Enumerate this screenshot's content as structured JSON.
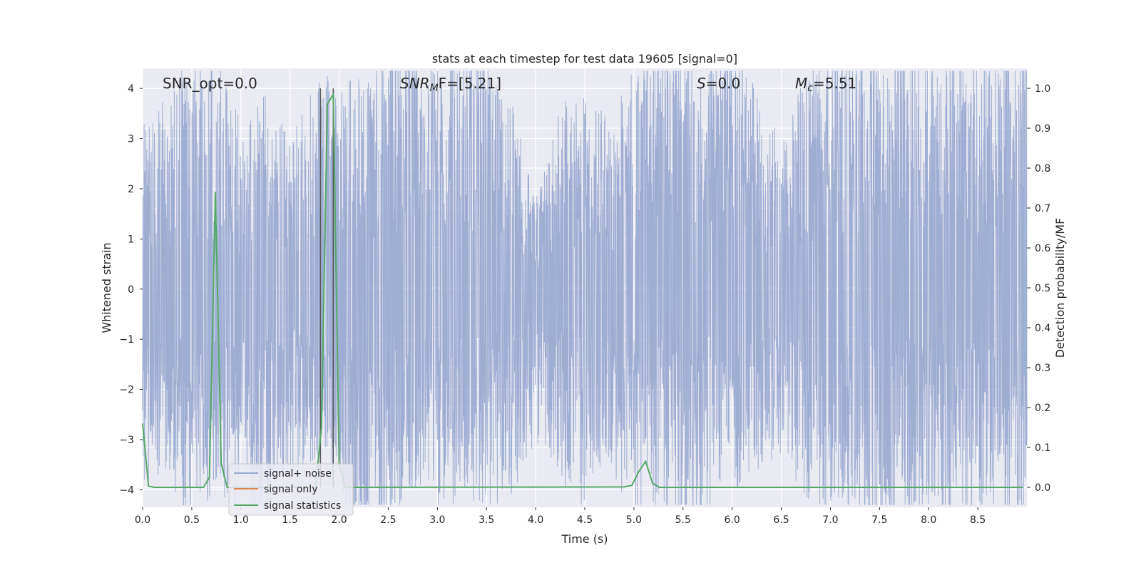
{
  "chart_data": {
    "type": "line",
    "title": "stats at each timestep for test data 19605 [signal=0]",
    "xlabel": "Time (s)",
    "ylabel": "Whitened strain",
    "ylabel_right": "Detection probability/MF",
    "xlim": [
      0.0,
      9.0
    ],
    "ylim": [
      -4.35,
      4.4
    ],
    "ylim_right": [
      -0.05,
      1.05
    ],
    "x_ticks": [
      0.0,
      0.5,
      1.0,
      1.5,
      2.0,
      2.5,
      3.0,
      3.5,
      4.0,
      4.5,
      5.0,
      5.5,
      6.0,
      6.5,
      7.0,
      7.5,
      8.0,
      8.5
    ],
    "y_ticks": [
      -4,
      -3,
      -2,
      -1,
      0,
      1,
      2,
      3,
      4
    ],
    "y_right_ticks": [
      0.0,
      0.1,
      0.2,
      0.3,
      0.4,
      0.5,
      0.6,
      0.7,
      0.8,
      0.9,
      1.0
    ],
    "grid": true,
    "legend_position": "lower-left",
    "annotations": {
      "snr_opt": "SNR_opt=0.0",
      "snr_mf_base": "SNR",
      "snr_mf_sub": "M",
      "snr_mf_rest": "F=[5.21]",
      "s_symbol": "S",
      "s_rest": "=0.0",
      "mc_symbol": "M",
      "mc_sub": "c",
      "mc_rest": "=5.51"
    },
    "vertical_markers": [
      1.81,
      1.94
    ],
    "series": [
      {
        "name": "signal+ noise",
        "color": "#9aabd1",
        "axis": "left",
        "envelope": {
          "x": [
            0.0,
            0.25,
            0.5,
            0.75,
            1.0,
            1.25,
            1.5,
            1.75,
            2.0,
            2.25,
            2.5,
            2.75,
            3.0,
            3.25,
            3.5,
            3.75,
            4.0,
            4.25,
            4.5,
            4.75,
            5.0,
            5.25,
            5.5,
            5.75,
            6.0,
            6.25,
            6.5,
            6.75,
            7.0,
            7.25,
            7.5,
            7.75,
            8.0,
            8.25,
            8.5,
            8.75,
            9.0
          ],
          "upper": [
            2.2,
            2.7,
            3.3,
            3.3,
            2.2,
            2.6,
            2.1,
            2.7,
            3.0,
            2.8,
            3.9,
            3.4,
            3.0,
            3.4,
            4.0,
            2.6,
            1.2,
            2.5,
            2.6,
            2.3,
            3.1,
            3.3,
            3.6,
            3.1,
            3.8,
            2.6,
            2.1,
            2.9,
            3.2,
            3.4,
            3.0,
            3.8,
            3.3,
            3.1,
            3.2,
            3.3,
            3.2
          ],
          "lower": [
            -2.6,
            -2.5,
            -3.2,
            -2.7,
            -2.9,
            -3.2,
            -2.6,
            -2.3,
            -2.7,
            -4.0,
            -3.3,
            -2.7,
            -3.0,
            -2.8,
            -3.0,
            -2.8,
            -2.0,
            -2.6,
            -3.0,
            -2.3,
            -3.2,
            -2.9,
            -3.9,
            -3.0,
            -2.7,
            -2.5,
            -2.2,
            -2.8,
            -3.0,
            -3.2,
            -3.9,
            -3.3,
            -3.0,
            -3.2,
            -3.0,
            -3.1,
            -3.1
          ]
        }
      },
      {
        "name": "signal only",
        "color": "#dd8452",
        "axis": "left",
        "x": [],
        "y": []
      },
      {
        "name": "signal statistics",
        "color": "#55a868",
        "axis": "right",
        "x": [
          0.0,
          0.06,
          0.12,
          0.62,
          0.68,
          0.74,
          0.8,
          0.86,
          1.76,
          1.82,
          1.88,
          1.94,
          2.0,
          2.06,
          4.9,
          4.98,
          5.05,
          5.12,
          5.19,
          5.26,
          8.96
        ],
        "y": [
          0.16,
          0.003,
          0.0,
          0.0,
          0.025,
          0.74,
          0.06,
          0.0,
          0.0,
          0.15,
          0.96,
          0.985,
          0.06,
          0.0,
          0.001,
          0.005,
          0.04,
          0.065,
          0.01,
          0.0,
          0.0
        ]
      }
    ]
  }
}
